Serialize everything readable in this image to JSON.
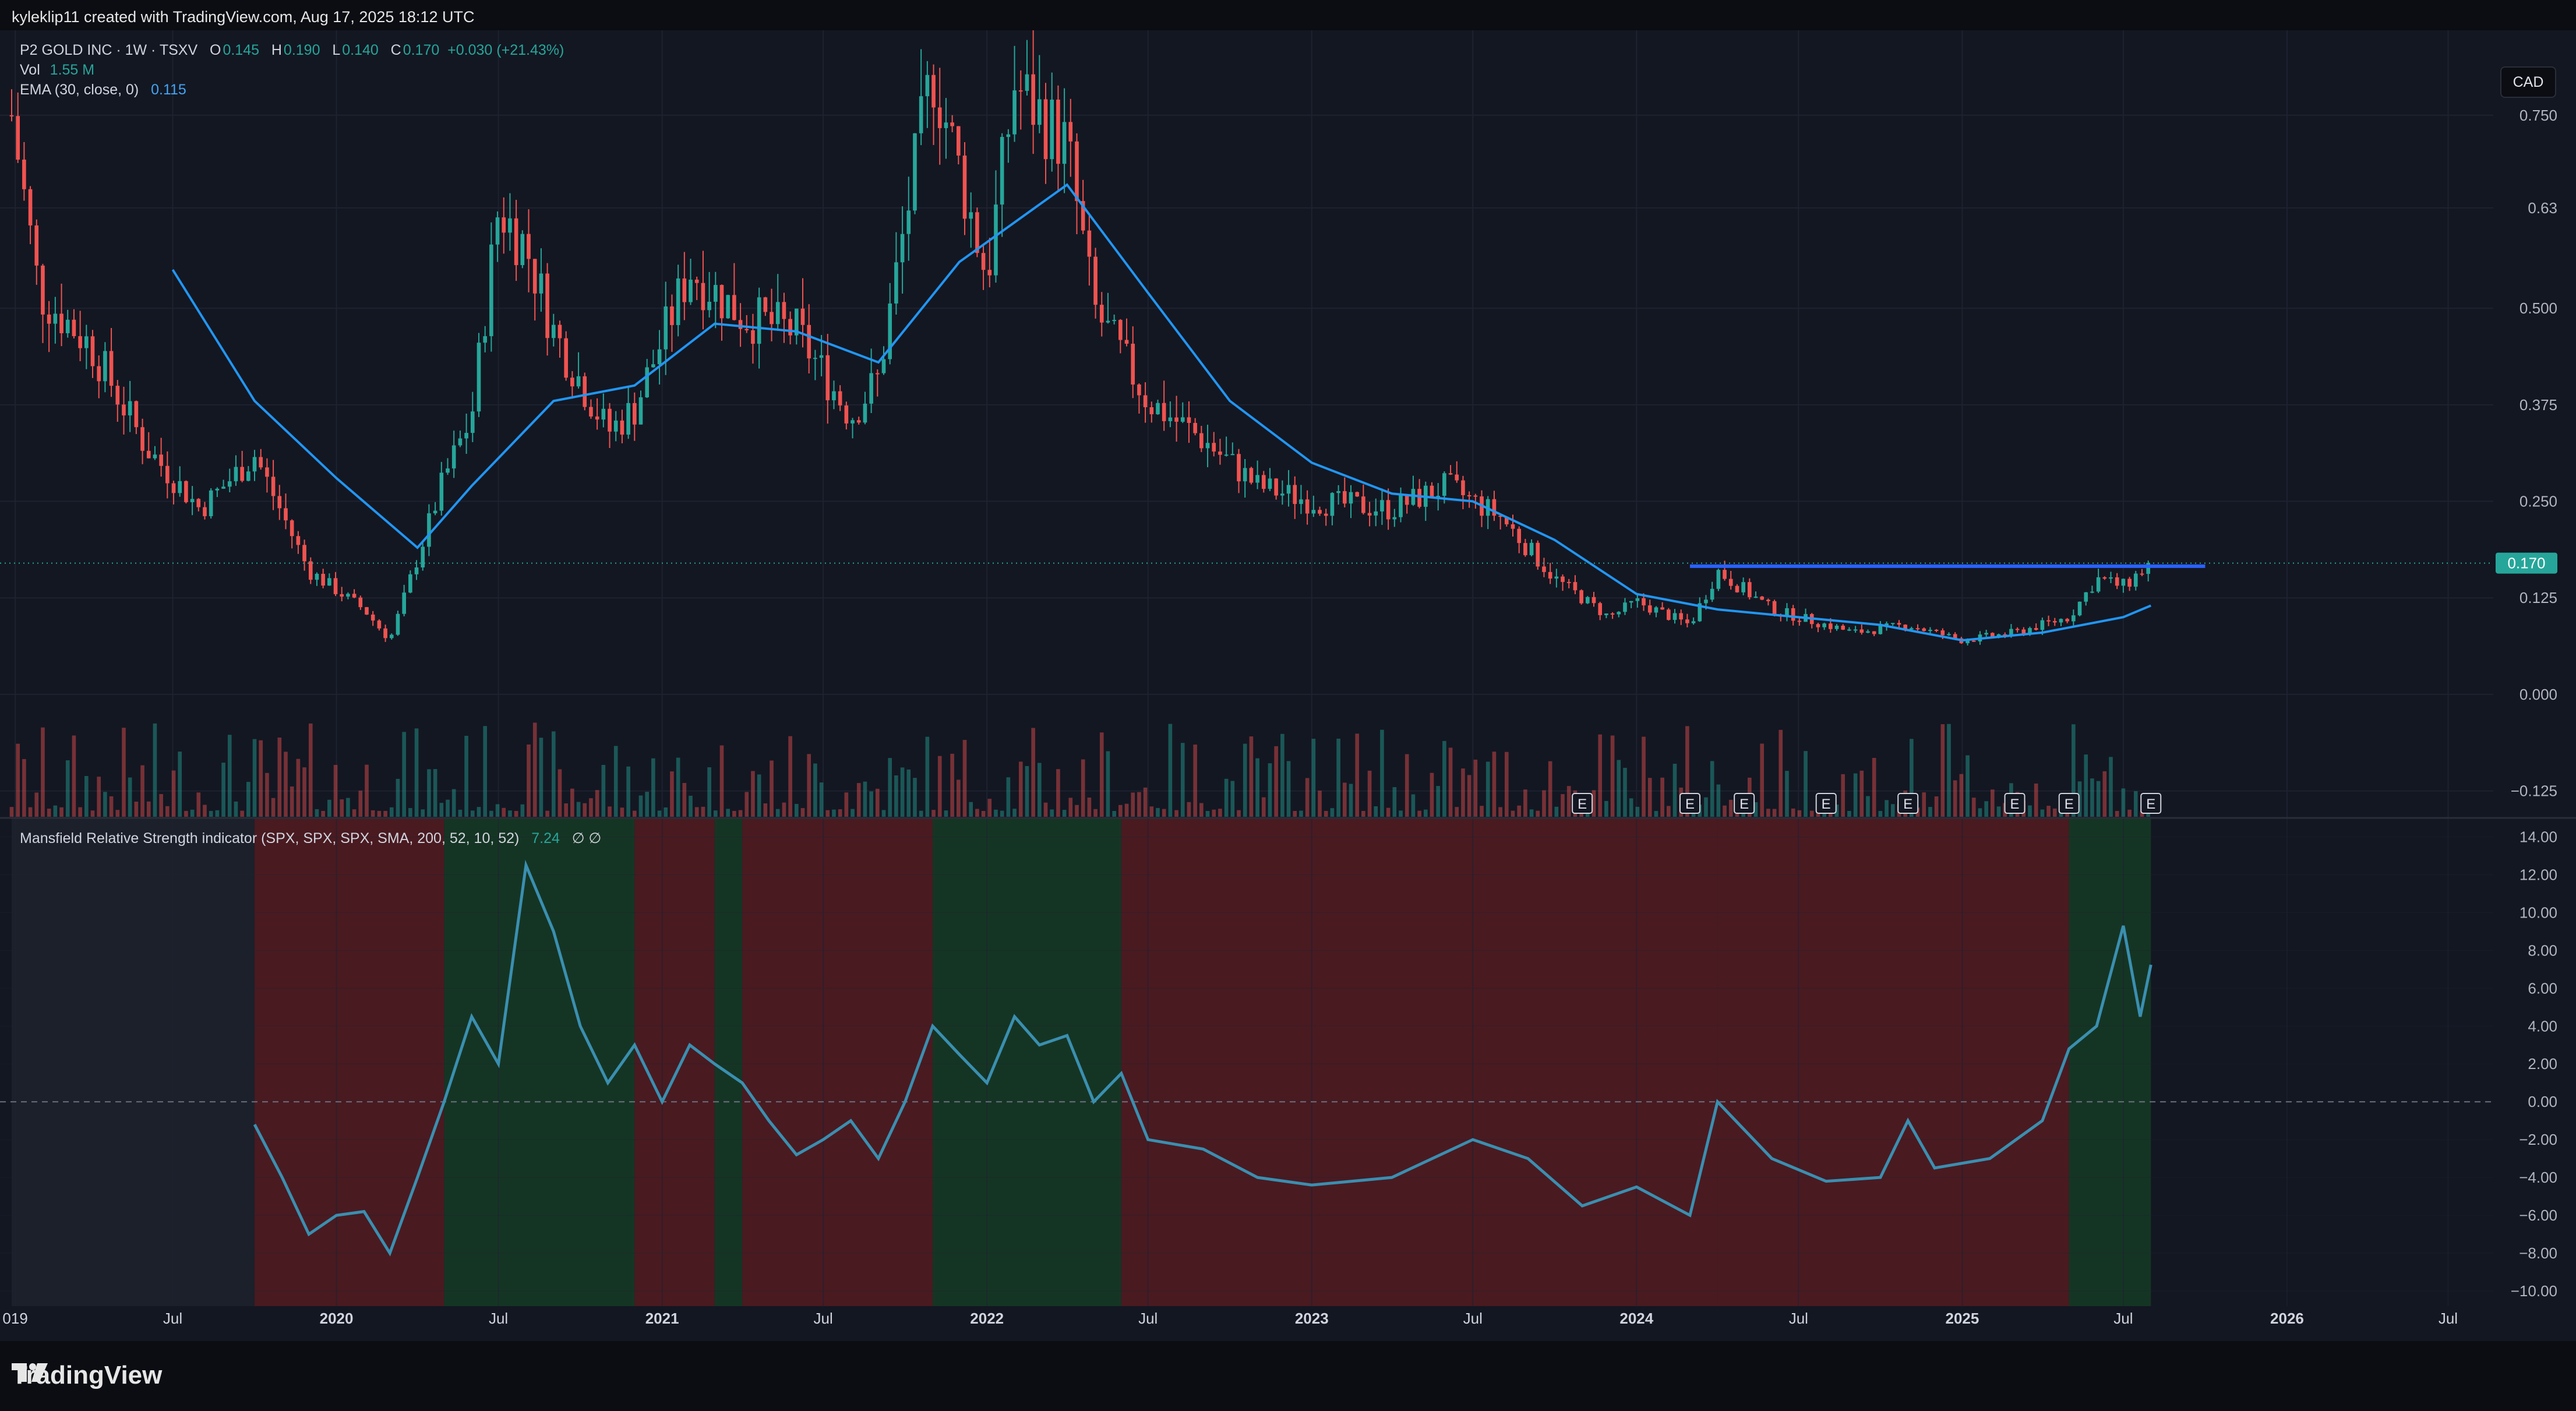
{
  "header": {
    "attribution": "kyleklip11 created with TradingView.com, Aug 17, 2025 18:12 UTC"
  },
  "legend": {
    "symbol": "P2 GOLD INC · 1W · TSXV",
    "o_label": "O",
    "o": "0.145",
    "h_label": "H",
    "h": "0.190",
    "l_label": "L",
    "l": "0.140",
    "c_label": "C",
    "c": "0.170",
    "change": "+0.030 (+21.43%)",
    "vol_label": "Vol",
    "vol": "1.55 M",
    "ema_label": "EMA (30, close, 0)",
    "ema": "0.115"
  },
  "indicator": {
    "label": "Mansfield Relative Strength indicator (SPX, SPX, SPX, SMA, 200, 52, 10, 52)",
    "value": "7.24",
    "extra": "∅ ∅"
  },
  "currency": "CAD",
  "brand": "TradingView",
  "colors": {
    "bg": "#131722",
    "up": "#26a69a",
    "down": "#ef5350",
    "ema": "#2196f3",
    "resistance": "#2962ff",
    "mrs": "#3a8fb0",
    "zone_green": "#153524",
    "zone_red": "#4a1a21",
    "price_label": "#26a69a"
  },
  "chart_data": [
    {
      "type": "candlestick",
      "title": "P2 GOLD INC · 1W · TSXV",
      "x_range": [
        "2019-01",
        "2026-12"
      ],
      "ylim": [
        -0.16,
        0.86
      ],
      "y_ticks": [
        "0.750",
        "0.63",
        "0.500",
        "0.375",
        "0.250",
        "0.125",
        "0.000",
        "−0.125"
      ],
      "x_ticks": [
        "019",
        "Jul",
        "2020",
        "Jul",
        "2021",
        "Jul",
        "2022",
        "Jul",
        "2023",
        "Jul",
        "2024",
        "Jul",
        "2025",
        "Jul",
        "2026",
        "Jul"
      ],
      "last_price": "0.170",
      "last_price_value": 0.17,
      "resistance": {
        "value": 0.166,
        "from": "2024-03",
        "to": "2025-10"
      },
      "earnings_marker": "E",
      "earnings": [
        "2023-11",
        "2024-03",
        "2024-05",
        "2024-08",
        "2024-11",
        "2025-03",
        "2025-05",
        "2025-08"
      ],
      "price_path": [
        [
          "2019-01",
          0.75
        ],
        [
          "2019-02",
          0.52
        ],
        [
          "2019-04",
          0.45
        ],
        [
          "2019-06",
          0.32
        ],
        [
          "2019-08",
          0.24
        ],
        [
          "2019-10",
          0.31
        ],
        [
          "2019-12",
          0.16
        ],
        [
          "2020-02",
          0.11
        ],
        [
          "2020-03",
          0.07
        ],
        [
          "2020-05",
          0.28
        ],
        [
          "2020-06",
          0.36
        ],
        [
          "2020-07",
          0.63
        ],
        [
          "2020-08",
          0.58
        ],
        [
          "2020-09",
          0.47
        ],
        [
          "2020-11",
          0.34
        ],
        [
          "2020-12",
          0.37
        ],
        [
          "2021-02",
          0.55
        ],
        [
          "2021-04",
          0.49
        ],
        [
          "2021-06",
          0.47
        ],
        [
          "2021-08",
          0.36
        ],
        [
          "2021-09",
          0.41
        ],
        [
          "2021-10",
          0.61
        ],
        [
          "2021-11",
          0.81
        ],
        [
          "2022-01",
          0.54
        ],
        [
          "2022-02",
          0.79
        ],
        [
          "2022-04",
          0.71
        ],
        [
          "2022-05",
          0.5
        ],
        [
          "2022-07",
          0.38
        ],
        [
          "2022-09",
          0.33
        ],
        [
          "2022-11",
          0.27
        ],
        [
          "2023-01",
          0.25
        ],
        [
          "2023-04",
          0.24
        ],
        [
          "2023-06",
          0.27
        ],
        [
          "2023-08",
          0.23
        ],
        [
          "2023-10",
          0.15
        ],
        [
          "2023-12",
          0.1
        ],
        [
          "2024-01",
          0.12
        ],
        [
          "2024-03",
          0.09
        ],
        [
          "2024-04",
          0.16
        ],
        [
          "2024-06",
          0.11
        ],
        [
          "2024-09",
          0.08
        ],
        [
          "2024-11",
          0.09
        ],
        [
          "2025-01",
          0.07
        ],
        [
          "2025-03",
          0.08
        ],
        [
          "2025-05",
          0.1
        ],
        [
          "2025-06",
          0.15
        ],
        [
          "2025-07",
          0.14
        ],
        [
          "2025-08",
          0.17
        ]
      ],
      "ema_path": [
        [
          "2019-07",
          0.55
        ],
        [
          "2019-10",
          0.38
        ],
        [
          "2020-01",
          0.28
        ],
        [
          "2020-04",
          0.19
        ],
        [
          "2020-06",
          0.27
        ],
        [
          "2020-09",
          0.38
        ],
        [
          "2020-12",
          0.4
        ],
        [
          "2021-03",
          0.48
        ],
        [
          "2021-06",
          0.47
        ],
        [
          "2021-09",
          0.43
        ],
        [
          "2021-12",
          0.56
        ],
        [
          "2022-04",
          0.66
        ],
        [
          "2022-07",
          0.52
        ],
        [
          "2022-10",
          0.38
        ],
        [
          "2023-01",
          0.3
        ],
        [
          "2023-04",
          0.26
        ],
        [
          "2023-07",
          0.25
        ],
        [
          "2023-10",
          0.2
        ],
        [
          "2024-01",
          0.13
        ],
        [
          "2024-04",
          0.11
        ],
        [
          "2024-07",
          0.1
        ],
        [
          "2024-10",
          0.09
        ],
        [
          "2025-01",
          0.07
        ],
        [
          "2025-04",
          0.08
        ],
        [
          "2025-07",
          0.1
        ],
        [
          "2025-08",
          0.115
        ]
      ]
    },
    {
      "type": "line",
      "title": "Mansfield Relative Strength indicator (SPX, SPX, SPX, SMA, 200, 52, 10, 52)",
      "ylim": [
        -10.8,
        15
      ],
      "y_ticks": [
        "14.00",
        "12.00",
        "10.00",
        "8.00",
        "6.00",
        "4.00",
        "2.00",
        "0.00",
        "−2.00",
        "−4.00",
        "−6.00",
        "−8.00",
        "−10.00"
      ],
      "zero_line": 0,
      "zones": [
        [
          "2019-01",
          "2019-10",
          "neutral"
        ],
        [
          "2019-10",
          "2020-05",
          "red"
        ],
        [
          "2020-05",
          "2020-12",
          "green"
        ],
        [
          "2020-12",
          "2021-03",
          "red"
        ],
        [
          "2021-03",
          "2021-04",
          "green"
        ],
        [
          "2021-04",
          "2021-11",
          "red"
        ],
        [
          "2021-11",
          "2022-06",
          "green"
        ],
        [
          "2022-06",
          "2024-04",
          "red"
        ],
        [
          "2024-04",
          "2025-05",
          "red"
        ],
        [
          "2025-05",
          "2025-08",
          "green"
        ]
      ],
      "series": [
        {
          "values": [
            [
              "2019-10",
              -1.2
            ],
            [
              "2019-11",
              -4.0
            ],
            [
              "2019-12",
              -7.0
            ],
            [
              "2020-01",
              -6.0
            ],
            [
              "2020-02",
              -5.8
            ],
            [
              "2020-03",
              -8.0
            ],
            [
              "2020-04",
              -4.0
            ],
            [
              "2020-05",
              0.0
            ],
            [
              "2020-06",
              4.5
            ],
            [
              "2020-07",
              2.0
            ],
            [
              "2020-08",
              12.5
            ],
            [
              "2020-09",
              9.0
            ],
            [
              "2020-10",
              4.0
            ],
            [
              "2020-11",
              1.0
            ],
            [
              "2020-12",
              3.0
            ],
            [
              "2021-01",
              0.0
            ],
            [
              "2021-02",
              3.0
            ],
            [
              "2021-03",
              2.0
            ],
            [
              "2021-04",
              1.0
            ],
            [
              "2021-05",
              -1.0
            ],
            [
              "2021-06",
              -2.8
            ],
            [
              "2021-07",
              -2.0
            ],
            [
              "2021-08",
              -1.0
            ],
            [
              "2021-09",
              -3.0
            ],
            [
              "2021-10",
              0.0
            ],
            [
              "2021-11",
              4.0
            ],
            [
              "2021-12",
              2.5
            ],
            [
              "2022-01",
              1.0
            ],
            [
              "2022-02",
              4.5
            ],
            [
              "2022-03",
              3.0
            ],
            [
              "2022-04",
              3.5
            ],
            [
              "2022-05",
              0.0
            ],
            [
              "2022-06",
              1.5
            ],
            [
              "2022-07",
              -2.0
            ],
            [
              "2022-09",
              -2.5
            ],
            [
              "2022-11",
              -4.0
            ],
            [
              "2023-01",
              -4.4
            ],
            [
              "2023-04",
              -4.0
            ],
            [
              "2023-07",
              -2.0
            ],
            [
              "2023-09",
              -3.0
            ],
            [
              "2023-11",
              -5.5
            ],
            [
              "2024-01",
              -4.5
            ],
            [
              "2024-03",
              -6.0
            ],
            [
              "2024-04",
              0.0
            ],
            [
              "2024-06",
              -3.0
            ],
            [
              "2024-08",
              -4.2
            ],
            [
              "2024-10",
              -4.0
            ],
            [
              "2024-11",
              -1.0
            ],
            [
              "2024-12",
              -3.5
            ],
            [
              "2025-02",
              -3.0
            ],
            [
              "2025-04",
              -1.0
            ],
            [
              "2025-05",
              2.8
            ],
            [
              "2025-06",
              4.0
            ],
            [
              "2025-07",
              9.3
            ],
            [
              "2025-07-20",
              4.5
            ],
            [
              "2025-08",
              7.24
            ]
          ]
        }
      ]
    }
  ]
}
